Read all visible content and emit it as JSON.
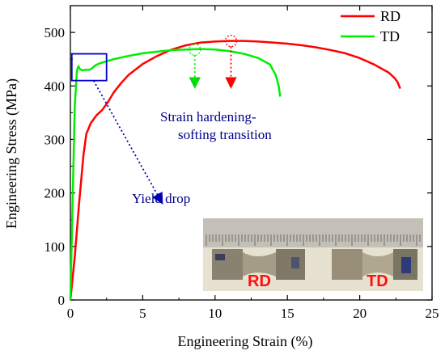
{
  "chart_data": {
    "type": "line",
    "xlabel": "Engineering Strain (%)",
    "ylabel": "Engineering Stress (MPa)",
    "xlim": [
      0,
      25
    ],
    "ylim": [
      0,
      550
    ],
    "xticks": [
      0,
      5,
      10,
      15,
      20,
      25
    ],
    "yticks": [
      0,
      100,
      200,
      300,
      400,
      500
    ],
    "grid": false,
    "legend_position": "top-right",
    "series": [
      {
        "name": "RD",
        "color": "#ff0000",
        "x": [
          0,
          0.3,
          0.6,
          0.9,
          1.1,
          1.4,
          1.8,
          2.2,
          2.6,
          3.0,
          3.5,
          4.0,
          5.0,
          6.0,
          7.0,
          8.0,
          9.0,
          10.0,
          11.0,
          12.0,
          13.0,
          14.0,
          15.0,
          16.0,
          17.0,
          18.0,
          19.0,
          20.0,
          21.0,
          22.0,
          22.4,
          22.6,
          22.8
        ],
        "y": [
          0,
          80,
          180,
          270,
          310,
          330,
          345,
          355,
          370,
          388,
          405,
          420,
          441,
          456,
          468,
          476,
          481,
          483,
          484,
          484,
          483,
          481,
          479,
          476,
          472,
          467,
          461,
          452,
          440,
          425,
          415,
          408,
          395
        ]
      },
      {
        "name": "TD",
        "color": "#00ee00",
        "x": [
          0,
          0.15,
          0.3,
          0.45,
          0.55,
          0.65,
          0.8,
          1.0,
          1.3,
          1.5,
          1.7,
          2.0,
          3.0,
          4.0,
          5.0,
          6.0,
          7.0,
          8.0,
          9.0,
          10.0,
          11.0,
          12.0,
          13.0,
          13.8,
          14.2,
          14.4,
          14.5
        ],
        "y": [
          0,
          180,
          360,
          428,
          437,
          432,
          429,
          430,
          430,
          433,
          438,
          442,
          450,
          456,
          461,
          464,
          467,
          468,
          469,
          468,
          465,
          460,
          452,
          440,
          420,
          400,
          380
        ]
      }
    ],
    "annotations": [
      {
        "text": "Yield drop",
        "color": "#00008b",
        "box_x": [
          0.1,
          2.5
        ],
        "box_y": [
          410,
          460
        ],
        "arrow_to": [
          6.3,
          183
        ]
      },
      {
        "text_lines": [
          "Strain hardening-",
          "softing transition"
        ],
        "color": "#00008b"
      }
    ],
    "transition_markers": [
      {
        "series": "TD",
        "x": 8.6,
        "y": 468,
        "color": "#00ee00",
        "arrow_to_y": 400
      },
      {
        "series": "RD",
        "x": 11.1,
        "y": 484,
        "color": "#ff0000",
        "arrow_to_y": 400
      }
    ],
    "inset_labels": [
      "RD",
      "TD"
    ]
  }
}
